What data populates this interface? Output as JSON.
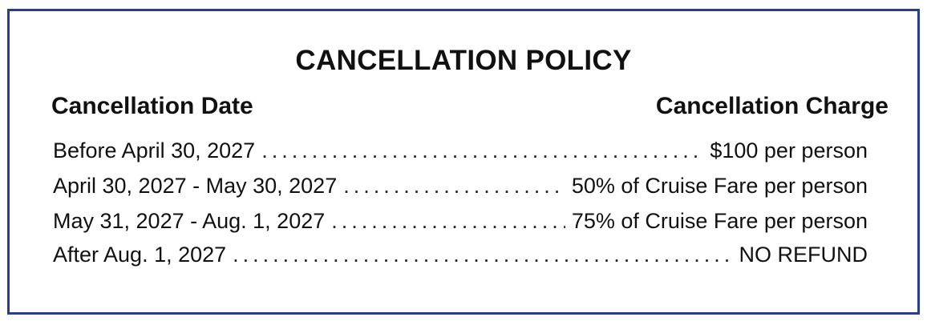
{
  "title": "CANCELLATION POLICY",
  "headers": {
    "date": "Cancellation Date",
    "charge": "Cancellation Charge"
  },
  "rows": [
    {
      "date": "Before April 30, 2027",
      "charge": "$100 per person"
    },
    {
      "date": "April 30, 2027 - May 30, 2027",
      "charge": "50% of Cruise Fare per person"
    },
    {
      "date": "May 31, 2027 - Aug. 1, 2027",
      "charge": "75% of Cruise Fare per person"
    },
    {
      "date": "After Aug. 1, 2027",
      "charge": "NO REFUND"
    }
  ],
  "colors": {
    "border": "#2b3e8c",
    "text": "#111111"
  }
}
